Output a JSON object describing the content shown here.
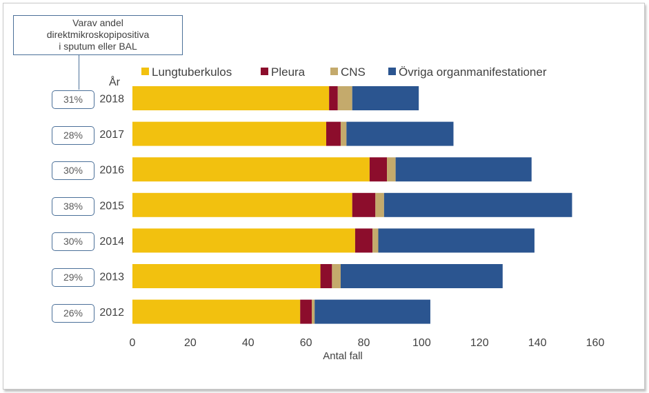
{
  "chart_data": {
    "type": "bar",
    "orientation": "horizontal",
    "stacked": true,
    "categories": [
      "2018",
      "2017",
      "2016",
      "2015",
      "2014",
      "2013",
      "2012"
    ],
    "category_axis_label": "År",
    "series": [
      {
        "name": "Lungtuberkulos",
        "color": "#f2c10f",
        "values": [
          68,
          67,
          82,
          76,
          77,
          65,
          58
        ]
      },
      {
        "name": "Pleura",
        "color": "#8c0d2c",
        "values": [
          3,
          5,
          6,
          8,
          6,
          4,
          4
        ]
      },
      {
        "name": "CNS",
        "color": "#c4aa6c",
        "values": [
          5,
          2,
          3,
          3,
          2,
          3,
          1
        ]
      },
      {
        "name": "Övriga organmanifestationer",
        "color": "#2b5590",
        "values": [
          23,
          37,
          47,
          65,
          54,
          56,
          40
        ]
      }
    ],
    "xlabel": "Antal fall",
    "xlim": [
      0,
      160
    ],
    "xticks": [
      0,
      20,
      40,
      60,
      80,
      100,
      120,
      140,
      160
    ],
    "legend_position": "top",
    "grid": false,
    "annotation": {
      "lines": [
        "Varav andel",
        "direktmikroskopipositiva",
        "i sputum eller BAL"
      ],
      "percentages": [
        "31%",
        "28%",
        "30%",
        "38%",
        "30%",
        "29%",
        "26%"
      ]
    }
  }
}
